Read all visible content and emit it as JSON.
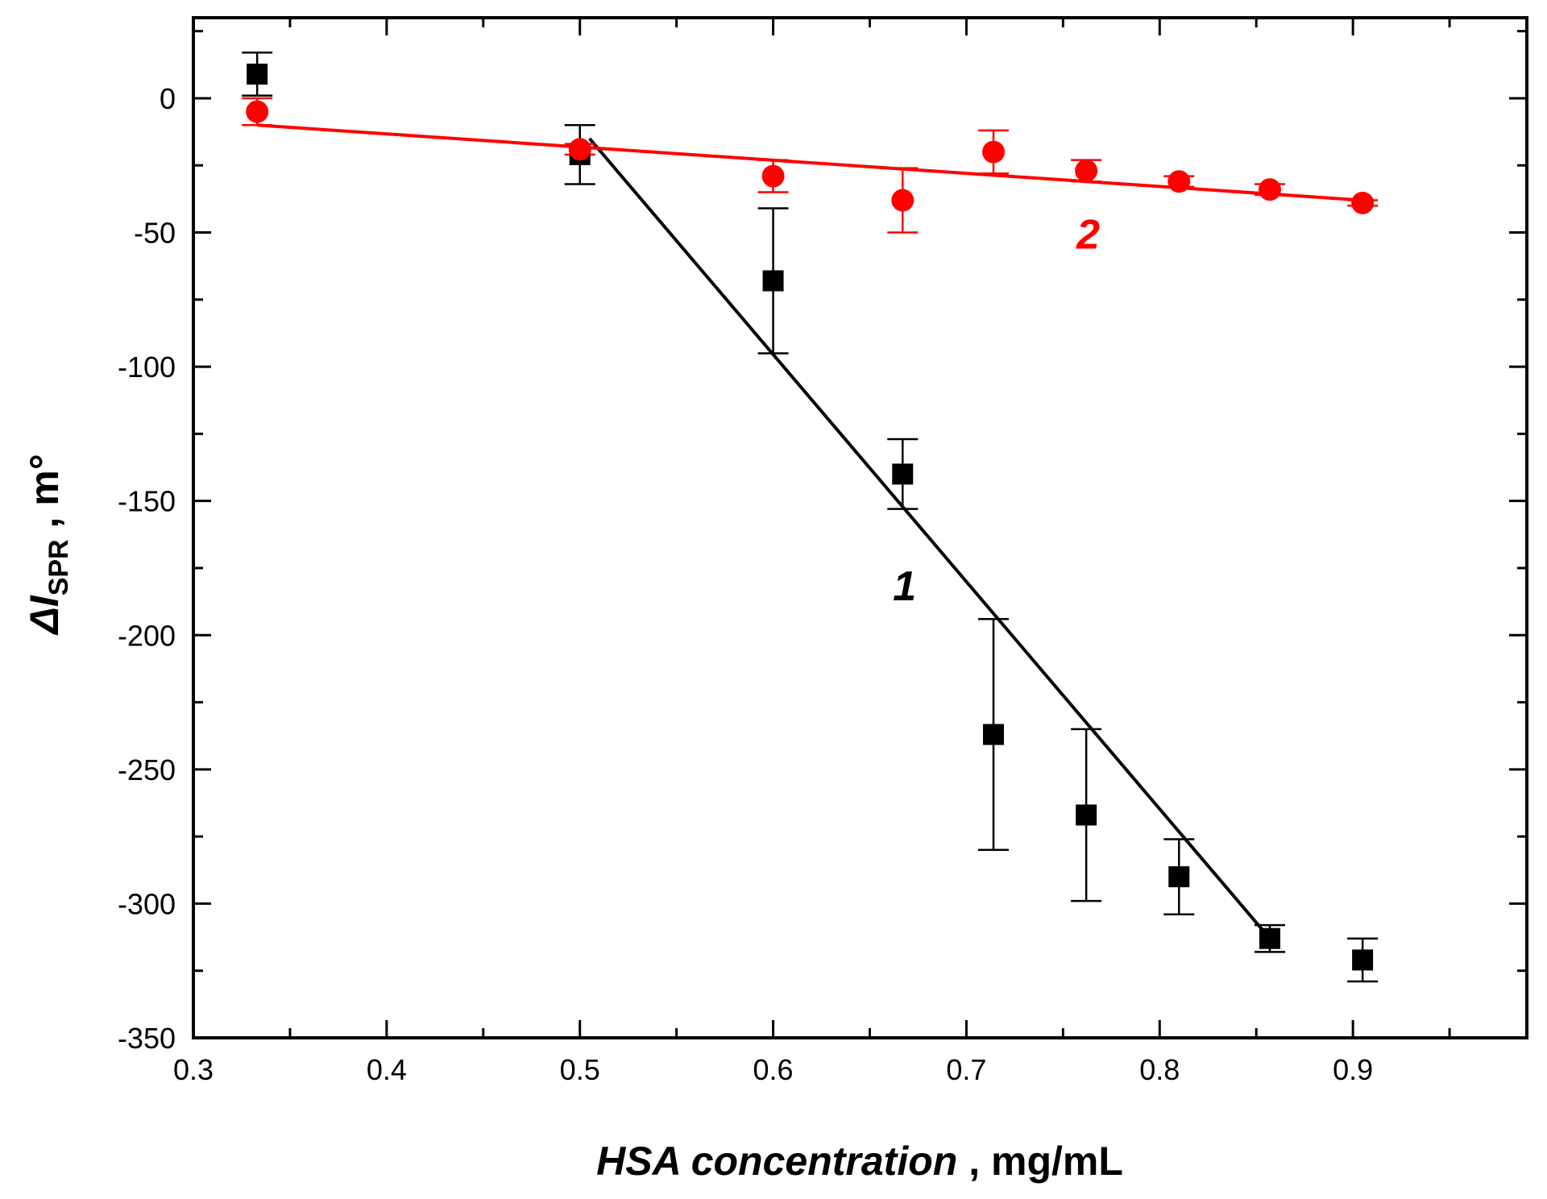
{
  "chart_data": {
    "type": "scatter",
    "title": "",
    "xlabel": {
      "italic_part": "HSA concentration",
      "rest": " ,  mg/mL"
    },
    "ylabel": {
      "symbol": "ΔI",
      "subscript": "SPR",
      "rest": " ,  m°"
    },
    "xlim": [
      0.3,
      0.99
    ],
    "ylim": [
      -350,
      30
    ],
    "xticks": [
      0.3,
      0.4,
      0.5,
      0.6,
      0.7,
      0.8,
      0.9
    ],
    "xtick_labels": [
      "0.3",
      "0.4",
      "0.5",
      "0.6",
      "0.7",
      "0.8",
      "0.9"
    ],
    "yticks": [
      0,
      -50,
      -100,
      -150,
      -200,
      -250,
      -300,
      -350
    ],
    "ytick_labels": [
      "0",
      "-50",
      "-100",
      "-150",
      "-200",
      "-250",
      "-300",
      "-350"
    ],
    "grid": false,
    "series": [
      {
        "name": "1",
        "label": "1",
        "marker": "square",
        "color": "#000000",
        "points": [
          {
            "x": 0.333,
            "y": 9,
            "err": 8
          },
          {
            "x": 0.5,
            "y": -21,
            "err": 11
          },
          {
            "x": 0.6,
            "y": -68,
            "err": 27
          },
          {
            "x": 0.667,
            "y": -140,
            "err": 13
          },
          {
            "x": 0.714,
            "y": -237,
            "err": 43
          },
          {
            "x": 0.762,
            "y": -267,
            "err": 32
          },
          {
            "x": 0.81,
            "y": -290,
            "err": 14
          },
          {
            "x": 0.857,
            "y": -313,
            "err": 5
          },
          {
            "x": 0.905,
            "y": -321,
            "err": 8
          }
        ],
        "fit": {
          "x": [
            0.505,
            0.857
          ],
          "y": [
            -15,
            -313
          ]
        },
        "label_pos": {
          "x": 0.668,
          "y": -187
        }
      },
      {
        "name": "2",
        "label": "2",
        "marker": "circle",
        "color": "#ff0000",
        "points": [
          {
            "x": 0.333,
            "y": -5,
            "err": 5
          },
          {
            "x": 0.5,
            "y": -19,
            "err": 2
          },
          {
            "x": 0.6,
            "y": -29,
            "err": 6
          },
          {
            "x": 0.667,
            "y": -38,
            "err": 12
          },
          {
            "x": 0.714,
            "y": -20,
            "err": 8
          },
          {
            "x": 0.762,
            "y": -27,
            "err": 4
          },
          {
            "x": 0.81,
            "y": -31,
            "err": 2
          },
          {
            "x": 0.857,
            "y": -34,
            "err": 2
          },
          {
            "x": 0.905,
            "y": -39,
            "err": 1
          }
        ],
        "fit": {
          "x": [
            0.333,
            0.905
          ],
          "y": [
            -10,
            -38
          ]
        },
        "label_pos": {
          "x": 0.763,
          "y": -56
        }
      }
    ]
  }
}
